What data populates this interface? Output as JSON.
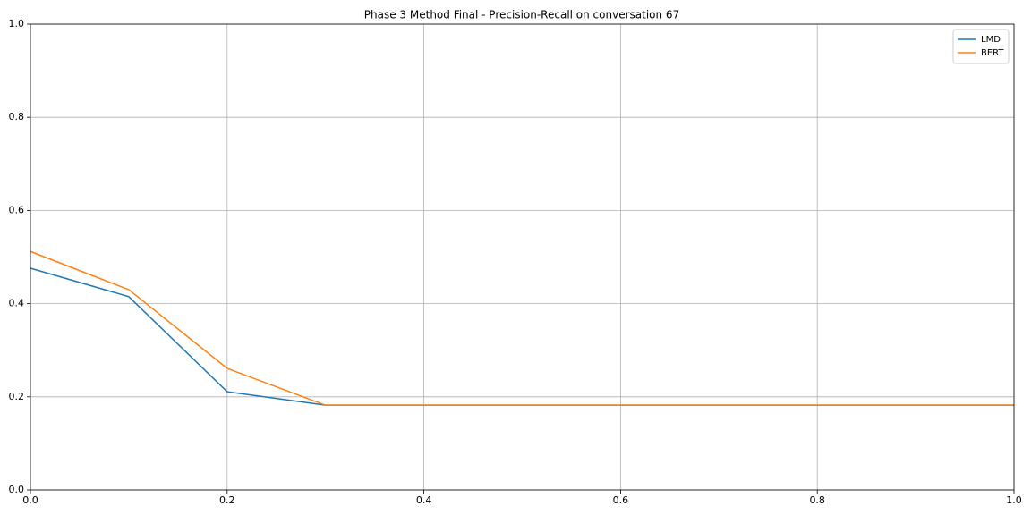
{
  "chart_data": {
    "type": "line",
    "title": "Phase 3 Method Final - Precision-Recall on conversation 67",
    "x": [
      0,
      0.1,
      0.2,
      0.3,
      0.4,
      0.5,
      0.6,
      0.7,
      0.8,
      0.9,
      1.0
    ],
    "series": [
      {
        "name": "LMD",
        "color": "#1f77b4",
        "values": [
          0.476,
          0.415,
          0.211,
          0.182,
          0.182,
          0.182,
          0.182,
          0.182,
          0.182,
          0.182,
          0.182
        ]
      },
      {
        "name": "BERT",
        "color": "#ff7f0e",
        "values": [
          0.512,
          0.43,
          0.261,
          0.182,
          0.182,
          0.182,
          0.182,
          0.182,
          0.182,
          0.182,
          0.182
        ]
      }
    ],
    "xlim": [
      0,
      1
    ],
    "ylim": [
      0,
      1
    ],
    "xticks": [
      {
        "value": 0,
        "label": "0.0"
      },
      {
        "value": 0.2,
        "label": "0.2"
      },
      {
        "value": 0.4,
        "label": "0.4"
      },
      {
        "value": 0.6,
        "label": "0.6"
      },
      {
        "value": 0.8,
        "label": "0.8"
      },
      {
        "value": 1,
        "label": "1.0"
      }
    ],
    "yticks": [
      {
        "value": 0,
        "label": "0.0"
      },
      {
        "value": 0.2,
        "label": "0.2"
      },
      {
        "value": 0.4,
        "label": "0.4"
      },
      {
        "value": 0.6,
        "label": "0.6"
      },
      {
        "value": 0.8,
        "label": "0.8"
      },
      {
        "value": 1,
        "label": "1.0"
      }
    ],
    "grid": true,
    "legend": "upper-right"
  }
}
